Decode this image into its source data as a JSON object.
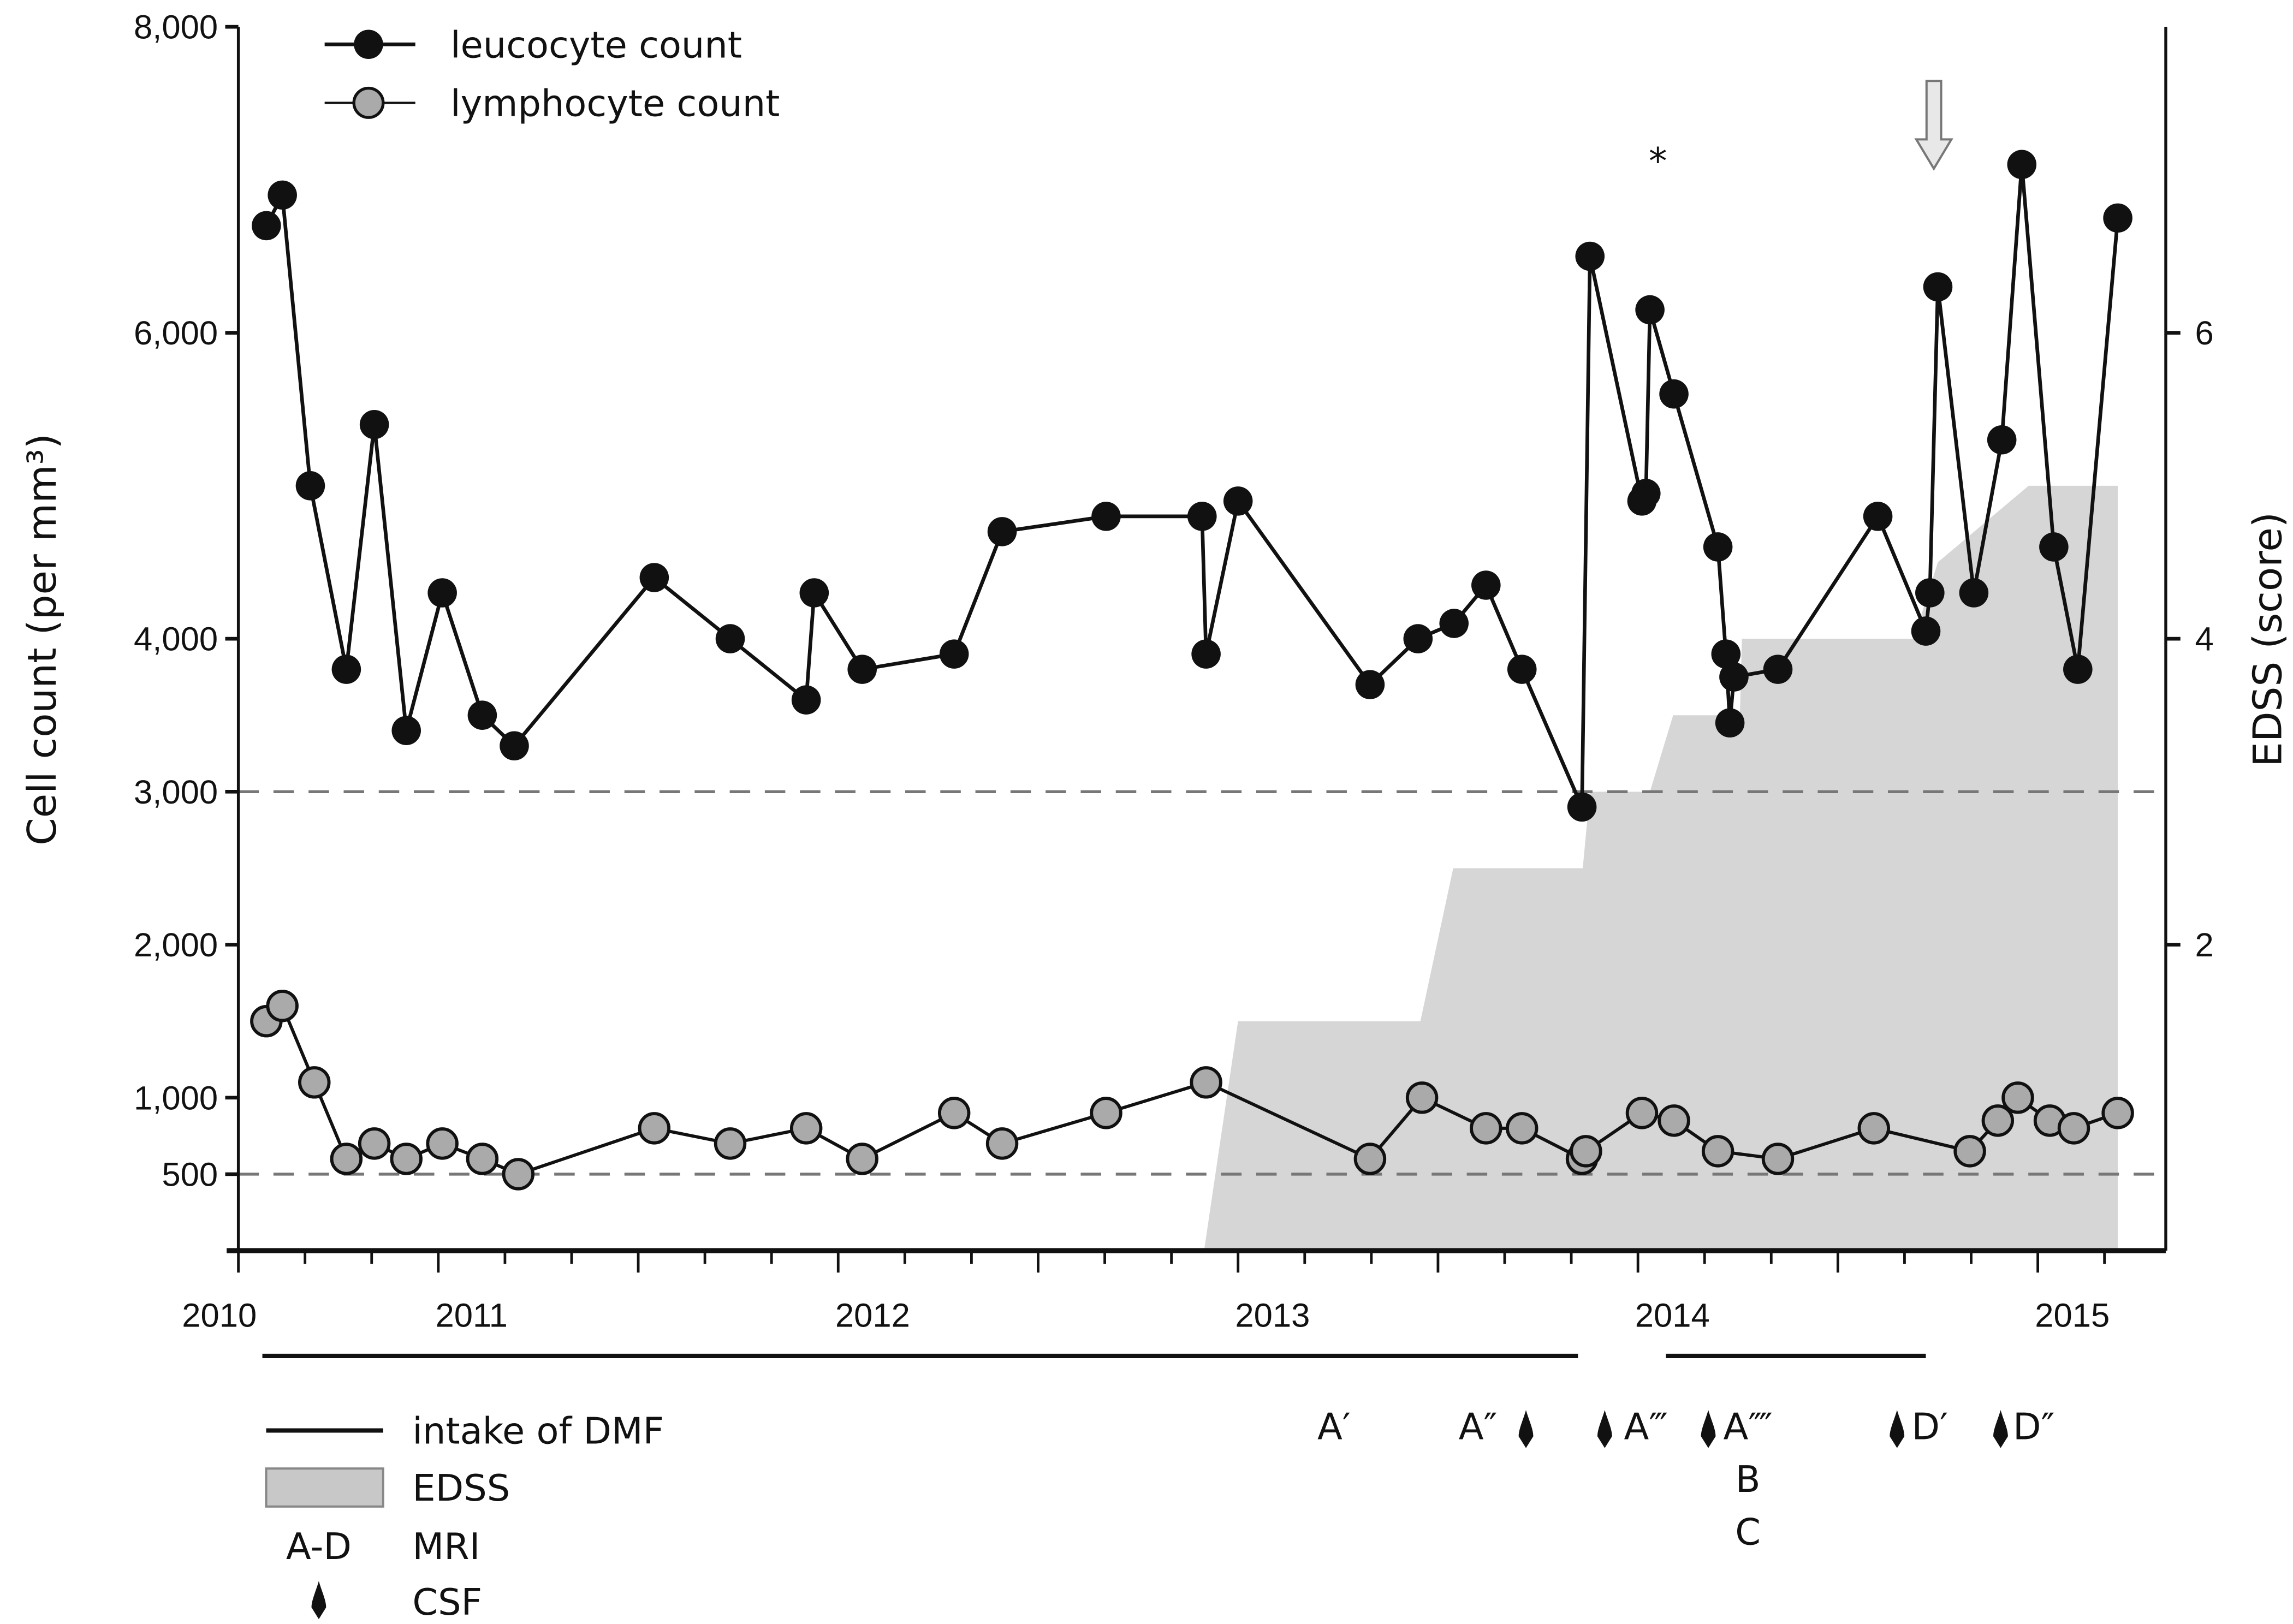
{
  "chart_data": {
    "type": "line",
    "x_axis": {
      "range": [
        2010.5,
        2015.32
      ],
      "tick_labels": [
        "2010",
        "2011",
        "2012",
        "2013",
        "2014",
        "2015"
      ],
      "tick_years": [
        2010.5,
        2011,
        2012,
        2013,
        2014,
        2015
      ],
      "major_tick_every_months": 6,
      "minor_tick_every_months": 2
    },
    "y_axis_left": {
      "label": "Cell count (per mm³)",
      "range": [
        0,
        8000
      ],
      "ticks": [
        500,
        1000,
        2000,
        3000,
        4000,
        6000,
        8000
      ],
      "tick_labels": [
        "500",
        "1,000",
        "2,000",
        "3,000",
        "4,000",
        "6,000",
        "8,000"
      ]
    },
    "y_axis_right": {
      "label": "EDSS (score)",
      "range": [
        0,
        8
      ],
      "ticks": [
        2,
        4,
        6
      ],
      "tick_labels": [
        "2",
        "4",
        "6"
      ]
    },
    "reference_lines": [
      3000,
      500
    ],
    "grid": false,
    "legend_placement": "top-left",
    "series": [
      {
        "name": "leucocyte count",
        "color": "#111111",
        "marker": "filled-circle",
        "points": [
          [
            2010.57,
            6700
          ],
          [
            2010.61,
            6900
          ],
          [
            2010.68,
            5000
          ],
          [
            2010.77,
            3800
          ],
          [
            2010.84,
            5400
          ],
          [
            2010.92,
            3400
          ],
          [
            2011.01,
            4300
          ],
          [
            2011.11,
            3500
          ],
          [
            2011.19,
            3300
          ],
          [
            2011.54,
            4400
          ],
          [
            2011.73,
            4000
          ],
          [
            2011.92,
            3600
          ],
          [
            2011.94,
            4300
          ],
          [
            2012.06,
            3800
          ],
          [
            2012.29,
            3900
          ],
          [
            2012.41,
            4700
          ],
          [
            2012.67,
            4800
          ],
          [
            2012.91,
            4800
          ],
          [
            2012.92,
            3900
          ],
          [
            2013.0,
            4900
          ],
          [
            2013.33,
            3700
          ],
          [
            2013.45,
            4000
          ],
          [
            2013.54,
            4100
          ],
          [
            2013.62,
            4350
          ],
          [
            2013.71,
            3800
          ],
          [
            2013.86,
            2900
          ],
          [
            2013.88,
            6500
          ],
          [
            2014.01,
            4900
          ],
          [
            2014.02,
            4950
          ],
          [
            2014.03,
            6150
          ],
          [
            2014.09,
            5600
          ],
          [
            2014.2,
            4600
          ],
          [
            2014.22,
            3900
          ],
          [
            2014.23,
            3450
          ],
          [
            2014.24,
            3750
          ],
          [
            2014.35,
            3800
          ],
          [
            2014.6,
            4800
          ],
          [
            2014.72,
            4050
          ],
          [
            2014.73,
            4300
          ],
          [
            2014.75,
            6300
          ],
          [
            2014.84,
            4300
          ],
          [
            2014.91,
            5300
          ],
          [
            2014.96,
            7100
          ],
          [
            2015.04,
            4600
          ],
          [
            2015.1,
            3800
          ],
          [
            2015.2,
            6750
          ]
        ]
      },
      {
        "name": "lymphocyte count",
        "color": "#aaaaaa",
        "marker": "gray-circle",
        "points": [
          [
            2010.57,
            1500
          ],
          [
            2010.61,
            1600
          ],
          [
            2010.69,
            1100
          ],
          [
            2010.77,
            600
          ],
          [
            2010.84,
            700
          ],
          [
            2010.92,
            600
          ],
          [
            2011.01,
            700
          ],
          [
            2011.11,
            600
          ],
          [
            2011.2,
            500
          ],
          [
            2011.54,
            800
          ],
          [
            2011.73,
            700
          ],
          [
            2011.92,
            800
          ],
          [
            2012.06,
            600
          ],
          [
            2012.29,
            900
          ],
          [
            2012.41,
            700
          ],
          [
            2012.67,
            900
          ],
          [
            2012.92,
            1100
          ],
          [
            2013.33,
            600
          ],
          [
            2013.46,
            1000
          ],
          [
            2013.62,
            800
          ],
          [
            2013.71,
            800
          ],
          [
            2013.86,
            600
          ],
          [
            2013.87,
            650
          ],
          [
            2014.01,
            900
          ],
          [
            2014.09,
            850
          ],
          [
            2014.2,
            650
          ],
          [
            2014.35,
            600
          ],
          [
            2014.59,
            800
          ],
          [
            2014.83,
            650
          ],
          [
            2014.9,
            850
          ],
          [
            2014.95,
            1000
          ],
          [
            2015.03,
            850
          ],
          [
            2015.09,
            800
          ],
          [
            2015.2,
            900
          ]
        ]
      }
    ],
    "edss_area": {
      "name": "EDSS",
      "color": "#d6d6d6",
      "points": [
        [
          2012.915,
          0
        ],
        [
          2013.0,
          1.5
        ],
        [
          2013.456,
          1.5
        ],
        [
          2013.538,
          2.5
        ],
        [
          2013.862,
          2.5
        ],
        [
          2013.88,
          3.0
        ],
        [
          2014.03,
          3.0
        ],
        [
          2014.088,
          3.5
        ],
        [
          2014.255,
          3.5
        ],
        [
          2014.26,
          4.0
        ],
        [
          2014.69,
          4.0
        ],
        [
          2014.75,
          4.5
        ],
        [
          2014.977,
          5.0
        ],
        [
          2015.2,
          5.0
        ],
        [
          2015.2,
          0
        ]
      ]
    },
    "dmf_intake_periods": [
      [
        2010.56,
        2013.85
      ],
      [
        2014.07,
        2014.72
      ]
    ],
    "markers": {
      "asterisk": {
        "label": "*",
        "x": 2014.05,
        "y": 7250
      },
      "arrow": {
        "x": 2014.74,
        "color": "#e8e8e8"
      }
    },
    "mri_labels": [
      {
        "label": "A′",
        "x": 2013.24,
        "row": 0
      },
      {
        "label": "A″",
        "x": 2013.6,
        "row": 0
      },
      {
        "label": "A‴",
        "x": 2014.02,
        "row": 0
      },
      {
        "label": "A⁗",
        "x": 2014.275,
        "row": 0
      },
      {
        "label": "B",
        "x": 2014.275,
        "row": 1
      },
      {
        "label": "C",
        "x": 2014.275,
        "row": 2
      },
      {
        "label": "D′",
        "x": 2014.73,
        "row": 0
      },
      {
        "label": "D″",
        "x": 2014.99,
        "row": 0
      }
    ],
    "csf_events": [
      2013.72,
      2013.917,
      2014.176,
      2014.648,
      2014.907
    ],
    "bottom_legend": {
      "dmf": "intake of DMF",
      "edss": "EDSS",
      "mri_symbol": "A-D",
      "mri": "MRI",
      "csf": "CSF"
    }
  }
}
